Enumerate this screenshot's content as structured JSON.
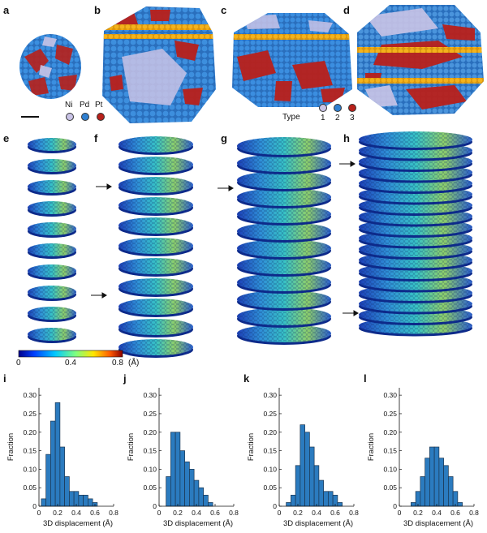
{
  "panel_labels": [
    "a",
    "b",
    "c",
    "d",
    "e",
    "f",
    "g",
    "h",
    "i",
    "j",
    "k",
    "l"
  ],
  "element_legend": {
    "labels": [
      "Ni",
      "Pd",
      "Pt"
    ],
    "colors": [
      "#c9c3e6",
      "#2f7fd0",
      "#b8201a"
    ]
  },
  "type_legend": {
    "title": "Type",
    "labels": [
      "1",
      "2",
      "3"
    ],
    "colors": [
      "#c9c3e6",
      "#2f7fd0",
      "#b8201a"
    ]
  },
  "colorbar": {
    "ticks": [
      "0",
      "0.4",
      "0.8"
    ],
    "unit": "(Å)"
  },
  "colors": {
    "bar": "#2b7bbf",
    "bar_edge": "#1b3550",
    "twin_band": "#f0b21b"
  },
  "chart_data": [
    {
      "panel": "i",
      "type": "bar",
      "x": [
        0.05,
        0.1,
        0.15,
        0.2,
        0.25,
        0.3,
        0.35,
        0.4,
        0.45,
        0.5,
        0.55,
        0.6
      ],
      "values": [
        0.02,
        0.14,
        0.23,
        0.28,
        0.16,
        0.08,
        0.04,
        0.04,
        0.03,
        0.03,
        0.02,
        0.01
      ],
      "xlabel": "3D displacement (Å)",
      "ylabel": "Fraction",
      "xticks": [
        "0",
        "0.2",
        "0.4",
        "0.6",
        "0.8"
      ],
      "yticks": [
        "0",
        "0.05",
        "0.10",
        "0.15",
        "0.20",
        "0.25",
        "0.30"
      ],
      "xlim": [
        0,
        0.8
      ],
      "ylim": [
        0,
        0.32
      ]
    },
    {
      "panel": "j",
      "type": "bar",
      "x": [
        0.1,
        0.15,
        0.2,
        0.25,
        0.3,
        0.35,
        0.4,
        0.45,
        0.5,
        0.55
      ],
      "values": [
        0.08,
        0.2,
        0.2,
        0.15,
        0.12,
        0.1,
        0.07,
        0.05,
        0.03,
        0.01
      ],
      "xlabel": "3D displacement (Å)",
      "ylabel": "Fraction",
      "xticks": [
        "0",
        "0.2",
        "0.4",
        "0.6",
        "0.8"
      ],
      "yticks": [
        "0",
        "0.05",
        "0.10",
        "0.15",
        "0.20",
        "0.25",
        "0.30"
      ],
      "xlim": [
        0,
        0.8
      ],
      "ylim": [
        0,
        0.32
      ]
    },
    {
      "panel": "k",
      "type": "bar",
      "x": [
        0.1,
        0.15,
        0.2,
        0.25,
        0.3,
        0.35,
        0.4,
        0.45,
        0.5,
        0.55,
        0.6,
        0.65
      ],
      "values": [
        0.01,
        0.03,
        0.11,
        0.22,
        0.2,
        0.16,
        0.11,
        0.07,
        0.04,
        0.04,
        0.03,
        0.01
      ],
      "xlabel": "3D displacement (Å)",
      "ylabel": "Fraction",
      "xticks": [
        "0",
        "0.2",
        "0.4",
        "0.6",
        "0.8"
      ],
      "yticks": [
        "0",
        "0.05",
        "0.10",
        "0.15",
        "0.20",
        "0.25",
        "0.30"
      ],
      "xlim": [
        0,
        0.8
      ],
      "ylim": [
        0,
        0.32
      ]
    },
    {
      "panel": "l",
      "type": "bar",
      "x": [
        0.15,
        0.2,
        0.25,
        0.3,
        0.35,
        0.4,
        0.45,
        0.5,
        0.55,
        0.6,
        0.65
      ],
      "values": [
        0.01,
        0.04,
        0.08,
        0.13,
        0.16,
        0.16,
        0.13,
        0.11,
        0.08,
        0.04,
        0.01
      ],
      "xlabel": "3D displacement (Å)",
      "ylabel": "Fraction",
      "xticks": [
        "0",
        "0.2",
        "0.4",
        "0.6",
        "0.8"
      ],
      "yticks": [
        "0",
        "0.05",
        "0.10",
        "0.15",
        "0.20",
        "0.25",
        "0.30"
      ],
      "xlim": [
        0,
        0.8
      ],
      "ylim": [
        0,
        0.32
      ]
    }
  ]
}
